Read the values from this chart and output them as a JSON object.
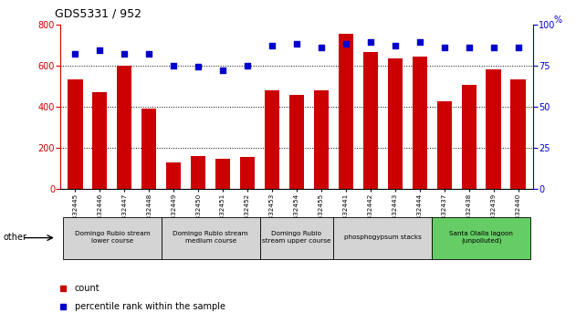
{
  "title": "GDS5331 / 952",
  "samples": [
    "GSM832445",
    "GSM832446",
    "GSM832447",
    "GSM832448",
    "GSM832449",
    "GSM832450",
    "GSM832451",
    "GSM832452",
    "GSM832453",
    "GSM832454",
    "GSM832455",
    "GSM832441",
    "GSM832442",
    "GSM832443",
    "GSM832444",
    "GSM832437",
    "GSM832438",
    "GSM832439",
    "GSM832440"
  ],
  "counts": [
    530,
    470,
    600,
    390,
    130,
    160,
    145,
    155,
    480,
    455,
    480,
    755,
    665,
    635,
    645,
    425,
    505,
    580,
    530
  ],
  "percentiles": [
    82,
    84,
    82,
    82,
    75,
    74,
    72,
    75,
    87,
    88,
    86,
    88,
    89,
    87,
    89,
    86,
    86,
    86,
    86
  ],
  "bar_color": "#cc0000",
  "dot_color": "#0000cc",
  "ylim_left": [
    0,
    800
  ],
  "ylim_right": [
    0,
    100
  ],
  "yticks_left": [
    0,
    200,
    400,
    600,
    800
  ],
  "yticks_right": [
    0,
    25,
    50,
    75,
    100
  ],
  "groups": [
    {
      "label": "Domingo Rubio stream\nlower course",
      "start": 0,
      "end": 3,
      "color": "#d4d4d4"
    },
    {
      "label": "Domingo Rubio stream\nmedium course",
      "start": 4,
      "end": 7,
      "color": "#d4d4d4"
    },
    {
      "label": "Domingo Rubio\nstream upper course",
      "start": 8,
      "end": 10,
      "color": "#d4d4d4"
    },
    {
      "label": "phosphogypsum stacks",
      "start": 11,
      "end": 14,
      "color": "#d4d4d4"
    },
    {
      "label": "Santa Olalla lagoon\n(unpolluted)",
      "start": 15,
      "end": 18,
      "color": "#66cc66"
    }
  ],
  "legend_count_color": "#cc0000",
  "legend_pct_color": "#0000cc",
  "other_label": "other",
  "background_color": "#ffffff"
}
